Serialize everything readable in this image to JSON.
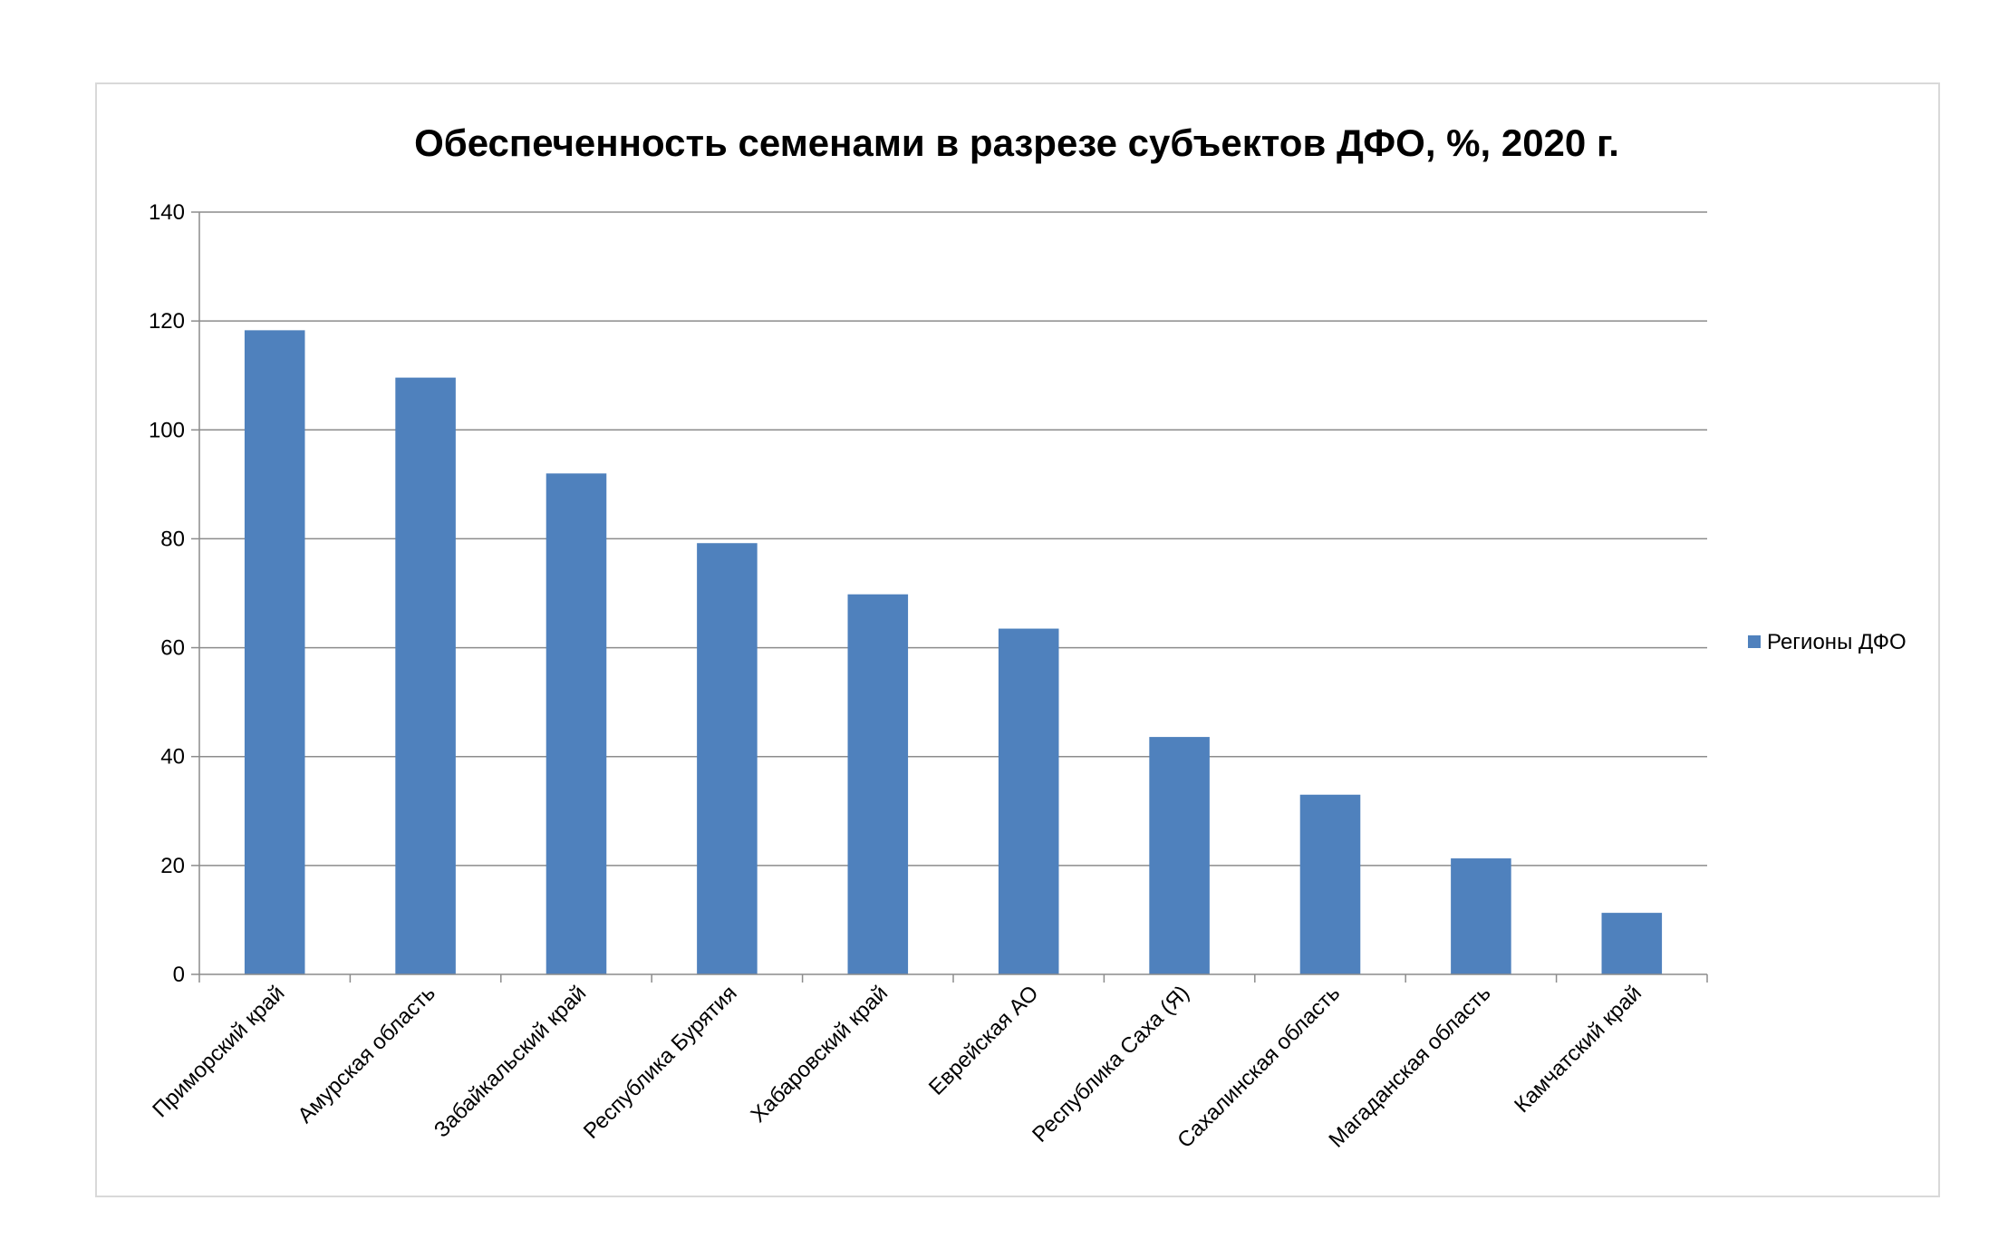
{
  "chart_data": {
    "type": "bar",
    "title": "Обеспеченность семенами в разрезе субъектов ДФО, %, 2020 г.",
    "xlabel": "",
    "ylabel": "",
    "ylim": [
      0,
      140
    ],
    "yticks": [
      0,
      20,
      40,
      60,
      80,
      100,
      120,
      140
    ],
    "grid": true,
    "legend_position": "right",
    "categories": [
      "Приморский край",
      "Амурская область",
      "Забайкальский край",
      "Республика Бурятия",
      "Хабаровский край",
      "Еврейская АО",
      "Республика Саха (Я)",
      "Сахалинская область",
      "Магаданская область",
      "Камчатский край"
    ],
    "series": [
      {
        "name": "Регионы ДФО",
        "color": "#4f81bd",
        "values": [
          118.3,
          109.6,
          92.0,
          79.2,
          69.8,
          63.5,
          43.6,
          33.0,
          21.3,
          11.3
        ]
      }
    ]
  }
}
